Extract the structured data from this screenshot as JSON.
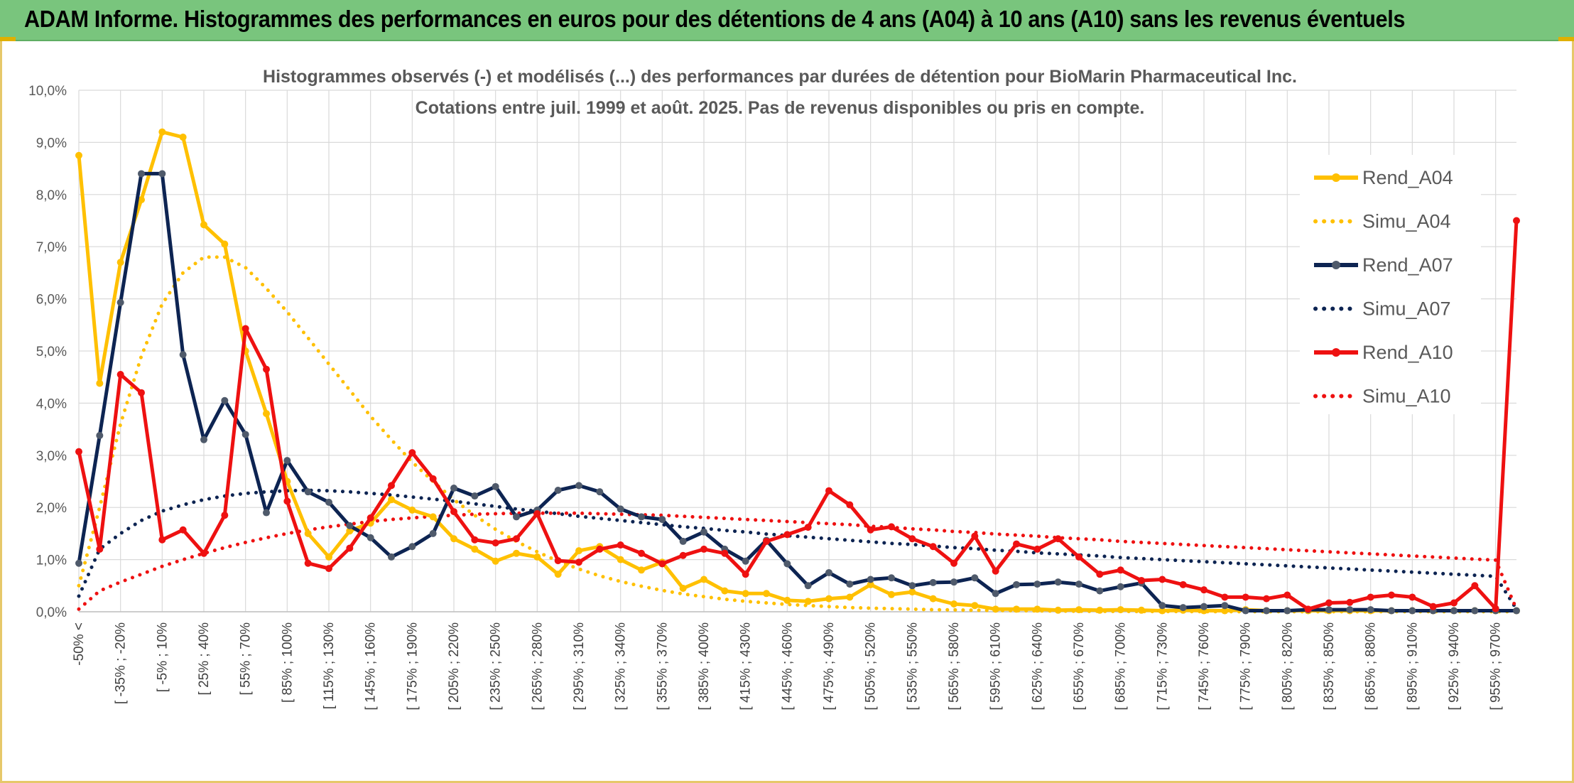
{
  "header": {
    "title": "ADAM Informe. Histogrammes des performances en euros pour des détentions de 4 ans (A04) à 10 ans (A10) sans les revenus éventuels"
  },
  "colors": {
    "header_bg": "#79c57d",
    "A04": "#ffc000",
    "A07": "#0d2452",
    "A10": "#ee1111"
  },
  "chart_data": {
    "type": "line",
    "title": "Histogrammes observés (-) et modélisés (...) des performances par durées de détention pour BioMarin Pharmaceutical Inc.",
    "subtitle": "Cotations entre juil. 1999 et août. 2025. Pas de revenus disponibles ou pris en compte.",
    "ylim": [
      0,
      10
    ],
    "y_ticks": [
      "0,0%",
      "1,0%",
      "2,0%",
      "3,0%",
      "4,0%",
      "5,0%",
      "6,0%",
      "7,0%",
      "8,0%",
      "9,0%",
      "10,0%"
    ],
    "grid": true,
    "legend_position": "right",
    "x_tick_labels": [
      "-50% <",
      "[ -35% ; -20%",
      "[ -5% ; 10%",
      "[ 25% ; 40%",
      "[ 55% ; 70%",
      "[ 85% ; 100%",
      "[ 115% ; 130%",
      "[ 145% ; 160%",
      "[ 175% ; 190%",
      "[ 205% ; 220%",
      "[ 235% ; 250%",
      "[ 265% ; 280%",
      "[ 295% ; 310%",
      "[ 325% ; 340%",
      "[ 355% ; 370%",
      "[ 385% ; 400%",
      "[ 415% ; 430%",
      "[ 445% ; 460%",
      "[ 475% ; 490%",
      "[ 505% ; 520%",
      "[ 535% ; 550%",
      "[ 565% ; 580%",
      "[ 595% ; 610%",
      "[ 625% ; 640%",
      "[ 655% ; 670%",
      "[ 685% ; 700%",
      "[ 715% ; 730%",
      "[ 745% ; 760%",
      "[ 775% ; 790%",
      "[ 805% ; 820%",
      "[ 835% ; 850%",
      "[ 865% ; 880%",
      "[ 895% ; 910%",
      "[ 925% ; 940%",
      "[ 955% ; 970%"
    ],
    "series": [
      {
        "name": "Rend_A04",
        "style": "solid",
        "color": "#ffc000",
        "values": [
          8.75,
          4.38,
          6.7,
          7.9,
          9.2,
          9.1,
          7.42,
          7.05,
          5.0,
          3.8,
          2.5,
          1.5,
          1.05,
          1.55,
          1.7,
          2.15,
          1.95,
          1.82,
          1.4,
          1.2,
          0.97,
          1.12,
          1.05,
          0.72,
          1.17,
          1.25,
          1.0,
          0.8,
          0.95,
          0.45,
          0.62,
          0.4,
          0.35,
          0.35,
          0.22,
          0.2,
          0.25,
          0.28,
          0.52,
          0.33,
          0.38,
          0.25,
          0.15,
          0.12,
          0.05,
          0.05,
          0.05,
          0.03,
          0.04,
          0.03,
          0.04,
          0.03,
          0.02,
          0.03,
          0.02,
          0.02,
          0.04,
          0.02,
          0.02,
          0.02,
          0.02,
          0.02,
          0.02,
          0.02,
          0.02,
          0.02,
          0.02,
          0.02,
          0.02,
          0.02
        ]
      },
      {
        "name": "Simu_A04",
        "style": "dotted",
        "color": "#ffc000",
        "values": [
          0.5,
          2.0,
          3.6,
          4.9,
          5.9,
          6.5,
          6.8,
          6.8,
          6.6,
          6.2,
          5.75,
          5.25,
          4.75,
          4.25,
          3.75,
          3.3,
          2.87,
          2.5,
          2.15,
          1.85,
          1.58,
          1.35,
          1.15,
          0.97,
          0.82,
          0.69,
          0.58,
          0.49,
          0.41,
          0.34,
          0.29,
          0.24,
          0.2,
          0.17,
          0.14,
          0.12,
          0.1,
          0.08,
          0.07,
          0.06,
          0.05,
          0.04,
          0.035,
          0.03,
          0.025,
          0.02,
          0.016,
          0.013,
          0.01,
          0.008,
          0.007,
          0.006,
          0.005,
          0.004,
          0.003,
          0.003,
          0.002,
          0.002,
          0.002,
          0.001,
          0.001,
          0.001,
          0.001,
          0.001,
          0.001,
          0.001,
          0.001,
          0.001,
          0.001,
          0.001
        ]
      },
      {
        "name": "Rend_A07",
        "style": "solid",
        "color": "#0d2452",
        "values": [
          0.93,
          3.38,
          5.93,
          8.4,
          8.4,
          4.93,
          3.3,
          4.05,
          3.4,
          1.9,
          2.9,
          2.3,
          2.1,
          1.65,
          1.42,
          1.05,
          1.25,
          1.5,
          2.37,
          2.22,
          2.4,
          1.82,
          1.95,
          2.33,
          2.42,
          2.3,
          1.97,
          1.82,
          1.77,
          1.35,
          1.53,
          1.2,
          0.97,
          1.37,
          0.92,
          0.5,
          0.75,
          0.53,
          0.62,
          0.65,
          0.5,
          0.56,
          0.57,
          0.65,
          0.35,
          0.52,
          0.53,
          0.57,
          0.53,
          0.4,
          0.48,
          0.55,
          0.12,
          0.08,
          0.1,
          0.12,
          0.02,
          0.02,
          0.02,
          0.04,
          0.04,
          0.04,
          0.04,
          0.02,
          0.02,
          0.02,
          0.02,
          0.02,
          0.02,
          0.02
        ]
      },
      {
        "name": "Simu_A07",
        "style": "dotted",
        "color": "#0d2452",
        "values": [
          0.3,
          1.2,
          1.5,
          1.75,
          1.93,
          2.05,
          2.15,
          2.22,
          2.27,
          2.3,
          2.32,
          2.33,
          2.32,
          2.3,
          2.27,
          2.24,
          2.2,
          2.16,
          2.12,
          2.07,
          2.02,
          1.97,
          1.93,
          1.88,
          1.83,
          1.79,
          1.75,
          1.71,
          1.67,
          1.63,
          1.6,
          1.56,
          1.53,
          1.49,
          1.46,
          1.43,
          1.4,
          1.37,
          1.34,
          1.31,
          1.29,
          1.26,
          1.23,
          1.21,
          1.18,
          1.16,
          1.13,
          1.11,
          1.09,
          1.07,
          1.04,
          1.02,
          1.0,
          0.98,
          0.96,
          0.94,
          0.92,
          0.9,
          0.88,
          0.86,
          0.84,
          0.82,
          0.8,
          0.78,
          0.76,
          0.74,
          0.72,
          0.7,
          0.68,
          0.05
        ]
      },
      {
        "name": "Rend_A10",
        "style": "solid",
        "color": "#ee1111",
        "values": [
          3.07,
          1.2,
          4.55,
          4.2,
          1.38,
          1.57,
          1.12,
          1.85,
          5.43,
          4.65,
          2.12,
          0.93,
          0.83,
          1.22,
          1.8,
          2.42,
          3.05,
          2.55,
          1.92,
          1.38,
          1.32,
          1.4,
          1.88,
          0.98,
          0.95,
          1.2,
          1.28,
          1.12,
          0.92,
          1.08,
          1.2,
          1.12,
          0.72,
          1.35,
          1.48,
          1.62,
          2.32,
          2.05,
          1.57,
          1.63,
          1.4,
          1.25,
          0.93,
          1.45,
          0.78,
          1.3,
          1.2,
          1.4,
          1.05,
          0.72,
          0.8,
          0.6,
          0.62,
          0.52,
          0.42,
          0.28,
          0.28,
          0.25,
          0.32,
          0.05,
          0.17,
          0.18,
          0.28,
          0.32,
          0.28,
          0.1,
          0.17,
          0.5,
          0.06,
          7.5
        ]
      },
      {
        "name": "Simu_A10",
        "style": "dotted",
        "color": "#ee1111",
        "values": [
          0.05,
          0.4,
          0.57,
          0.72,
          0.87,
          1.0,
          1.12,
          1.23,
          1.33,
          1.42,
          1.5,
          1.57,
          1.63,
          1.68,
          1.73,
          1.77,
          1.8,
          1.83,
          1.85,
          1.87,
          1.88,
          1.89,
          1.89,
          1.89,
          1.89,
          1.88,
          1.87,
          1.86,
          1.85,
          1.83,
          1.81,
          1.79,
          1.77,
          1.75,
          1.73,
          1.71,
          1.69,
          1.67,
          1.64,
          1.62,
          1.59,
          1.57,
          1.54,
          1.52,
          1.49,
          1.47,
          1.45,
          1.42,
          1.4,
          1.38,
          1.35,
          1.33,
          1.31,
          1.29,
          1.27,
          1.25,
          1.23,
          1.21,
          1.19,
          1.17,
          1.15,
          1.13,
          1.11,
          1.09,
          1.07,
          1.05,
          1.03,
          1.01,
          0.99,
          0.05
        ]
      }
    ]
  }
}
